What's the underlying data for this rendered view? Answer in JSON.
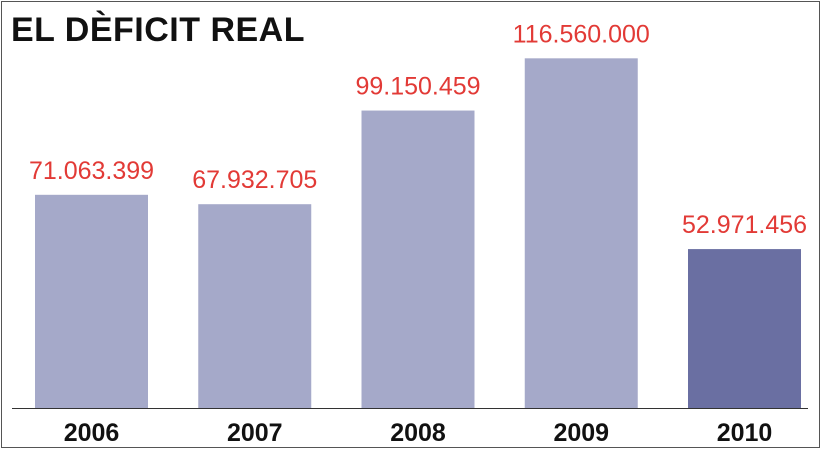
{
  "chart_data": {
    "type": "bar",
    "title": "EL DÈFICIT REAL",
    "categories": [
      "2006",
      "2007",
      "2008",
      "2009",
      "2010"
    ],
    "values": [
      71063399,
      67932705,
      99150459,
      116560000,
      52971456
    ],
    "value_labels": [
      "71.063.399",
      "67.932.705",
      "99.150.459",
      "116.560.000",
      "52.971.456"
    ],
    "xlabel": "",
    "ylabel": "",
    "ylim": [
      0,
      136000000
    ],
    "grid": false,
    "highlight_index": 4,
    "colors": {
      "bar": "#a5a9c9",
      "bar_highlight": "#6a6fa2",
      "value_label": "#e23a36",
      "axis": "#333333",
      "tick_label": "#111111"
    }
  }
}
